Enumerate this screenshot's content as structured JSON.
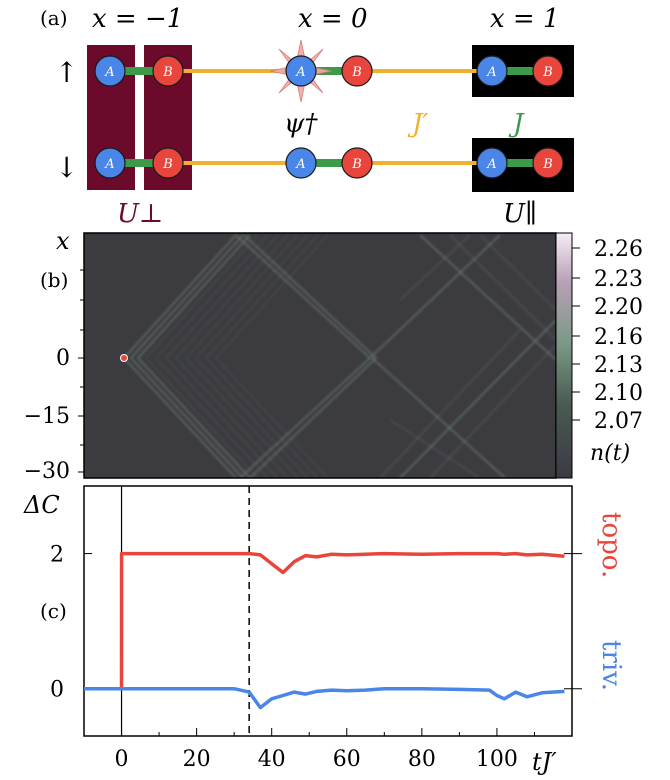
{
  "panel_a": {
    "label": "(a)",
    "x_labels": [
      "x = −1",
      "x = 0",
      "x = 1"
    ],
    "spin_up": "↑",
    "spin_down": "↓",
    "site_a": "A",
    "site_b": "B",
    "psi": "ψ†",
    "j_prime": "J′",
    "j": "J",
    "u_perp": "U⊥",
    "u_par": "U∥",
    "colors": {
      "u_perp": "#6b0a2a",
      "j_prime": "#f0b030",
      "j": "#3c9a4a",
      "site_a": "#4a86e8",
      "site_b": "#e8463c"
    }
  },
  "panel_b": {
    "label": "(b)",
    "y_axis_label": "x",
    "y_ticks": [
      "0",
      "−15",
      "−30"
    ],
    "colorbar_ticks": [
      "2.26",
      "2.23",
      "2.20",
      "2.16",
      "2.13",
      "2.10",
      "2.07"
    ],
    "colorbar_label": "n(t)"
  },
  "panel_c": {
    "label": "(c)",
    "y_axis_label": "ΔC",
    "y_ticks": [
      "2",
      "0"
    ],
    "topo_label": "topo.",
    "triv_label": "triv.",
    "x_label": "tJ′"
  },
  "chart_data": {
    "type": "line",
    "x": [
      -10,
      0,
      0.01,
      30,
      34,
      37,
      40,
      43,
      46,
      49,
      52,
      56,
      60,
      65,
      70,
      80,
      90,
      98,
      100,
      102,
      105,
      108,
      112,
      118
    ],
    "series": [
      {
        "name": "topo.",
        "color": "#e8463c",
        "values": [
          0,
          0,
          2,
          2,
          2,
          1.98,
          1.85,
          1.72,
          1.88,
          1.97,
          1.95,
          1.99,
          1.98,
          1.99,
          2,
          1.99,
          2,
          2,
          2,
          1.99,
          2,
          1.98,
          1.99,
          1.96
        ]
      },
      {
        "name": "triv.",
        "color": "#4a86e8",
        "values": [
          0,
          0,
          0,
          0,
          -0.05,
          -0.28,
          -0.15,
          -0.1,
          -0.05,
          -0.08,
          -0.04,
          -0.02,
          -0.03,
          -0.02,
          0,
          0,
          -0.01,
          -0.02,
          -0.1,
          -0.15,
          -0.05,
          -0.12,
          -0.06,
          -0.04
        ]
      }
    ],
    "xlim": [
      -10,
      120
    ],
    "ylim": [
      -0.7,
      3.0
    ],
    "x_ticks": [
      0,
      20,
      40,
      60,
      80,
      100
    ],
    "y_ticks": [
      0,
      2
    ],
    "vline_dashed": 34,
    "xlabel": "tJ′",
    "ylabel": "ΔC"
  }
}
